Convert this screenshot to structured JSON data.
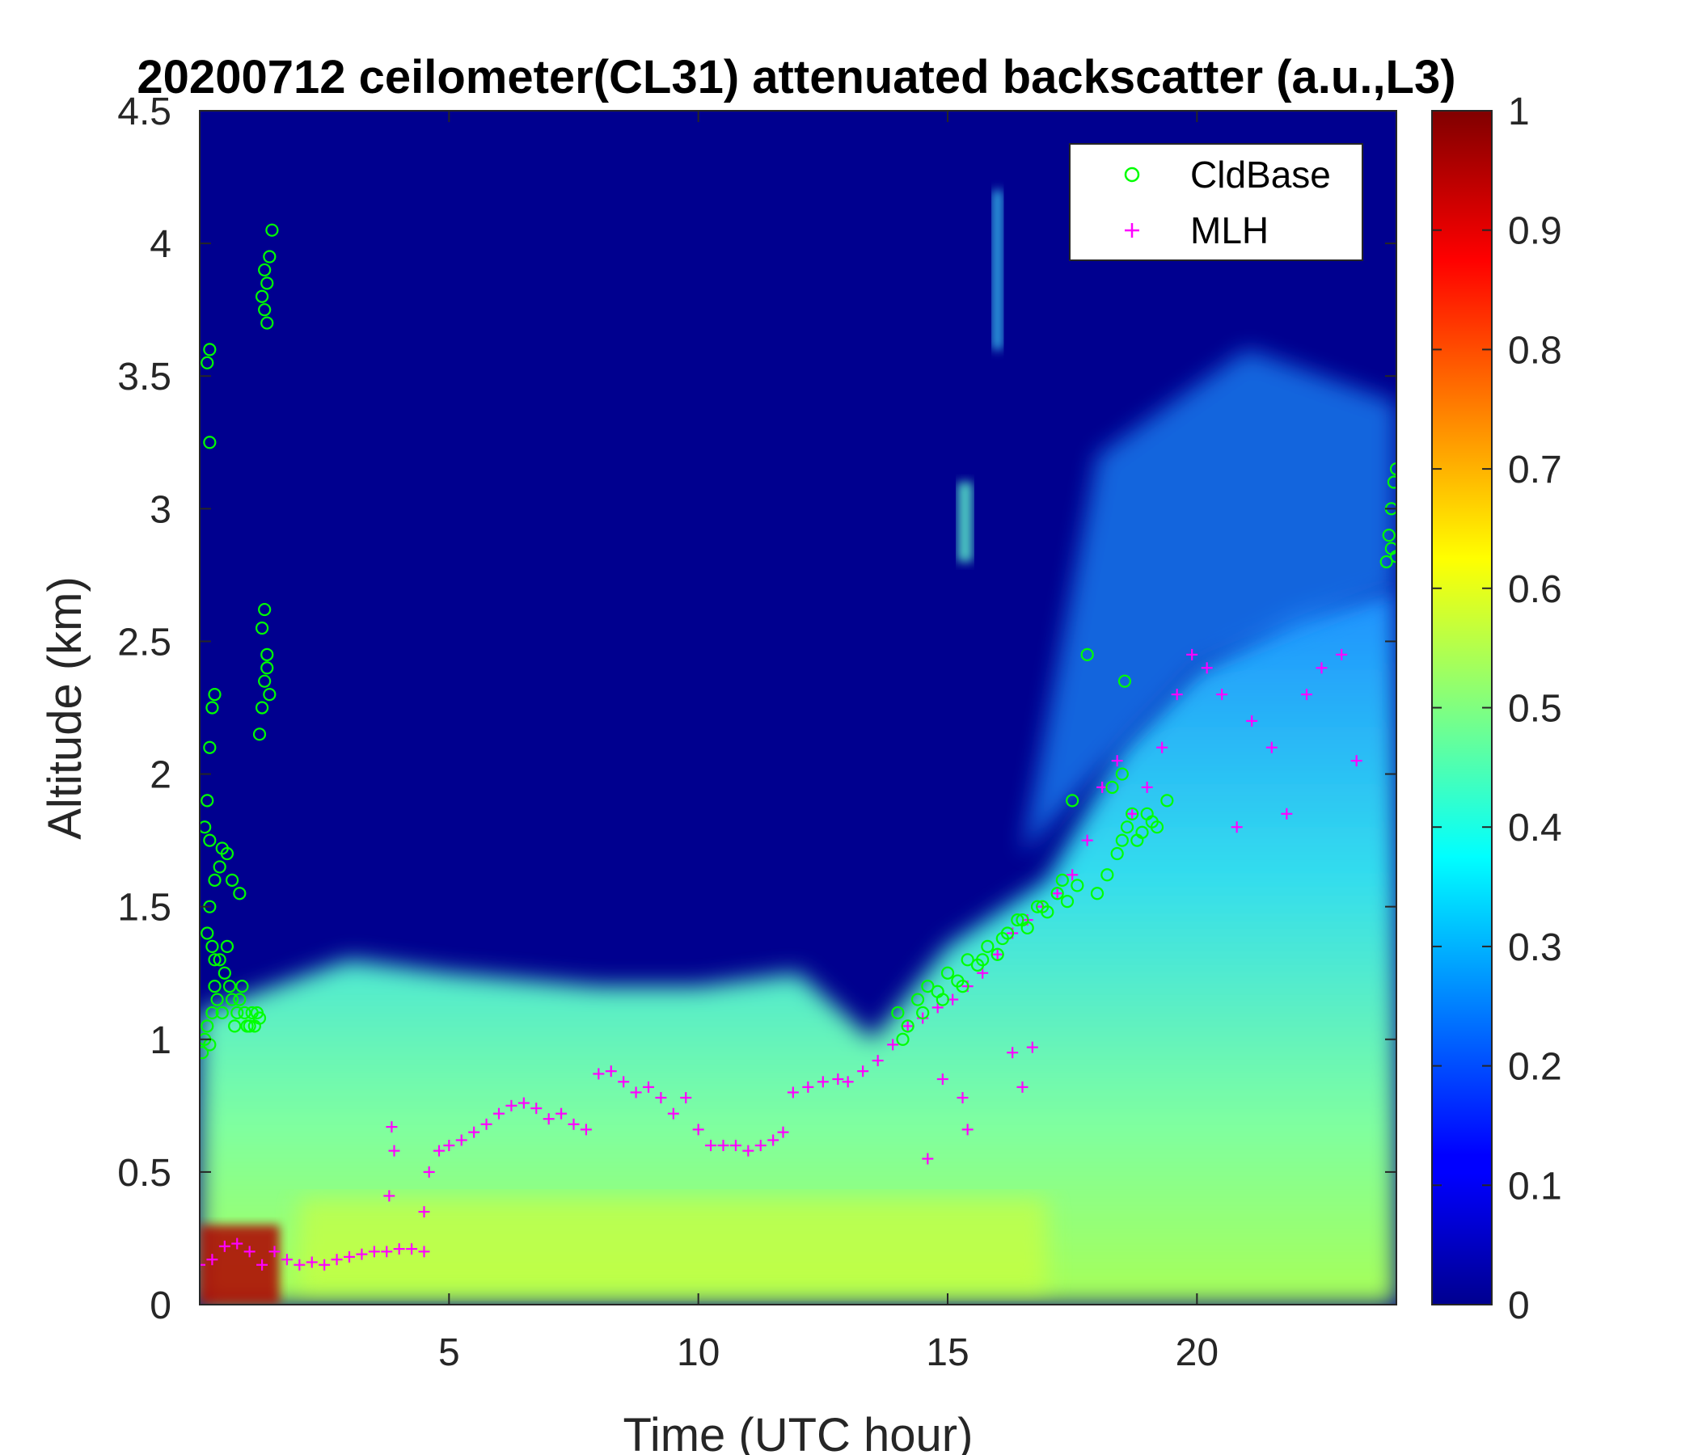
{
  "chart_data": {
    "type": "heatmap",
    "title": "20200712 ceilometer(CL31) attenuated backscatter (a.u.,L3)",
    "xlabel": "Time (UTC hour)",
    "ylabel": "Altitude (km)",
    "xlim": [
      0,
      24
    ],
    "ylim": [
      0,
      4.5
    ],
    "xticks": [
      5,
      10,
      15,
      20
    ],
    "xtick_labels": [
      "5",
      "10",
      "15",
      "20"
    ],
    "yticks": [
      0,
      0.5,
      1,
      1.5,
      2,
      2.5,
      3,
      3.5,
      4,
      4.5
    ],
    "ytick_labels": [
      "0",
      "0.5",
      "1",
      "1.5",
      "2",
      "2.5",
      "3",
      "3.5",
      "4",
      "4.5"
    ],
    "colorbar": {
      "colormap": "jet",
      "range": [
        0,
        1
      ],
      "ticks": [
        0,
        0.1,
        0.2,
        0.3,
        0.4,
        0.5,
        0.6,
        0.7,
        0.8,
        0.9,
        1
      ],
      "tick_labels": [
        "0",
        "0.1",
        "0.2",
        "0.3",
        "0.4",
        "0.5",
        "0.6",
        "0.7",
        "0.8",
        "0.9",
        "1"
      ]
    },
    "legend": {
      "position": "top-right",
      "entries": [
        {
          "label": "CldBase",
          "marker": "circle",
          "color": "#00ff00"
        },
        {
          "label": "MLH",
          "marker": "plus",
          "color": "#ff00ff"
        }
      ]
    },
    "background_field": {
      "description_values": {
        "blh_hours": [
          0,
          1.5,
          3,
          5,
          8,
          10,
          12,
          13.5,
          15,
          17,
          18.5,
          20,
          22,
          24
        ],
        "blh_km": [
          1.1,
          1.2,
          1.3,
          1.25,
          1.2,
          1.2,
          1.25,
          1.0,
          1.35,
          1.6,
          2.1,
          2.4,
          2.6,
          2.7
        ],
        "upper_noise_start_hour": 17
      }
    },
    "series": [
      {
        "name": "MLH",
        "marker": "plus",
        "color": "#ff00ff",
        "x": [
          0.0,
          0.25,
          0.5,
          0.75,
          1.0,
          1.25,
          1.5,
          1.75,
          2.0,
          2.25,
          2.5,
          2.75,
          3.0,
          3.25,
          3.5,
          3.75,
          4.0,
          4.25,
          4.5,
          4.6,
          4.8,
          5.0,
          5.25,
          5.5,
          5.75,
          6.0,
          6.25,
          6.5,
          6.75,
          7.0,
          7.25,
          7.5,
          7.75,
          8.0,
          8.25,
          8.5,
          8.75,
          9.0,
          9.25,
          9.5,
          9.75,
          10.0,
          10.25,
          10.5,
          10.75,
          11.0,
          11.25,
          11.5,
          11.7,
          11.9,
          12.2,
          12.5,
          12.8,
          13.0,
          13.3,
          13.6,
          13.9,
          14.2,
          14.5,
          14.8,
          15.1,
          15.4,
          15.7,
          16.0,
          16.3,
          16.6,
          16.9,
          17.2,
          17.5,
          17.8,
          18.1,
          18.4,
          18.7,
          19.0,
          19.3,
          19.6,
          19.9,
          20.2,
          20.5,
          20.8,
          21.1,
          21.5,
          21.8,
          22.2,
          22.5,
          22.9,
          23.2,
          3.85,
          3.9,
          3.8,
          4.5,
          14.6,
          14.9,
          15.3,
          15.4,
          16.3,
          16.5,
          16.7
        ],
        "y": [
          0.15,
          0.17,
          0.22,
          0.23,
          0.2,
          0.15,
          0.2,
          0.17,
          0.15,
          0.16,
          0.15,
          0.17,
          0.18,
          0.19,
          0.2,
          0.2,
          0.21,
          0.21,
          0.2,
          0.5,
          0.58,
          0.6,
          0.62,
          0.65,
          0.68,
          0.72,
          0.75,
          0.76,
          0.74,
          0.7,
          0.72,
          0.68,
          0.66,
          0.87,
          0.88,
          0.84,
          0.8,
          0.82,
          0.78,
          0.72,
          0.78,
          0.66,
          0.6,
          0.6,
          0.6,
          0.58,
          0.6,
          0.62,
          0.65,
          0.8,
          0.82,
          0.84,
          0.85,
          0.84,
          0.88,
          0.92,
          0.98,
          1.05,
          1.08,
          1.12,
          1.15,
          1.2,
          1.25,
          1.32,
          1.4,
          1.45,
          1.5,
          1.55,
          1.62,
          1.75,
          1.95,
          2.05,
          1.85,
          1.95,
          2.1,
          2.3,
          2.45,
          2.4,
          2.3,
          1.8,
          2.2,
          2.1,
          1.85,
          2.3,
          2.4,
          2.45,
          2.05,
          0.67,
          0.58,
          0.41,
          0.35,
          0.55,
          0.85,
          0.78,
          0.66,
          0.95,
          0.82,
          0.97
        ]
      },
      {
        "name": "CldBase",
        "marker": "circle",
        "color": "#00ff00",
        "x": [
          0.05,
          0.1,
          0.15,
          0.2,
          0.25,
          0.3,
          0.35,
          0.4,
          0.45,
          0.5,
          0.55,
          0.6,
          0.65,
          0.7,
          0.75,
          0.8,
          0.85,
          0.9,
          0.95,
          1.0,
          1.05,
          1.1,
          1.15,
          1.2,
          0.15,
          0.2,
          0.25,
          0.3,
          0.1,
          0.15,
          0.2,
          0.3,
          0.4,
          0.45,
          0.55,
          0.65,
          0.8,
          1.2,
          1.25,
          1.3,
          1.35,
          1.25,
          1.3,
          1.35,
          1.4,
          1.3,
          1.35,
          1.4,
          1.45,
          1.25,
          1.3,
          1.35,
          0.2,
          0.25,
          0.3,
          0.15,
          0.2,
          0.2,
          14.0,
          14.2,
          14.4,
          14.6,
          14.8,
          15.0,
          15.2,
          15.4,
          15.6,
          15.8,
          16.0,
          16.2,
          16.4,
          16.6,
          16.8,
          17.0,
          17.2,
          17.4,
          17.6,
          14.1,
          14.5,
          14.9,
          15.3,
          15.7,
          16.1,
          16.5,
          16.9,
          17.3,
          18.0,
          18.2,
          18.4,
          18.5,
          18.6,
          18.8,
          19.0,
          19.2,
          19.4,
          18.3,
          18.5,
          18.7,
          18.9,
          19.1,
          17.5,
          17.8,
          18.55,
          23.8,
          23.85,
          23.9,
          23.95,
          24.0,
          23.9,
          24.0
        ],
        "y": [
          0.95,
          1.0,
          1.05,
          0.98,
          1.1,
          1.2,
          1.15,
          1.3,
          1.1,
          1.25,
          1.35,
          1.2,
          1.15,
          1.05,
          1.1,
          1.15,
          1.2,
          1.1,
          1.05,
          1.05,
          1.1,
          1.05,
          1.1,
          1.08,
          1.4,
          1.5,
          1.35,
          1.3,
          1.8,
          1.9,
          1.75,
          1.6,
          1.65,
          1.72,
          1.7,
          1.6,
          1.55,
          2.15,
          2.25,
          2.35,
          2.45,
          2.55,
          2.62,
          2.4,
          2.3,
          3.75,
          3.85,
          3.95,
          4.05,
          3.8,
          3.9,
          3.7,
          2.1,
          2.25,
          2.3,
          3.55,
          3.6,
          3.25,
          1.1,
          1.05,
          1.15,
          1.2,
          1.18,
          1.25,
          1.22,
          1.3,
          1.28,
          1.35,
          1.32,
          1.4,
          1.45,
          1.42,
          1.5,
          1.48,
          1.55,
          1.52,
          1.58,
          1.0,
          1.1,
          1.15,
          1.2,
          1.3,
          1.38,
          1.45,
          1.5,
          1.6,
          1.55,
          1.62,
          1.7,
          1.75,
          1.8,
          1.75,
          1.85,
          1.8,
          1.9,
          1.95,
          2.0,
          1.85,
          1.78,
          1.82,
          1.9,
          2.45,
          2.35,
          2.8,
          2.9,
          3.0,
          3.1,
          3.15,
          2.85,
          2.82
        ]
      }
    ]
  }
}
